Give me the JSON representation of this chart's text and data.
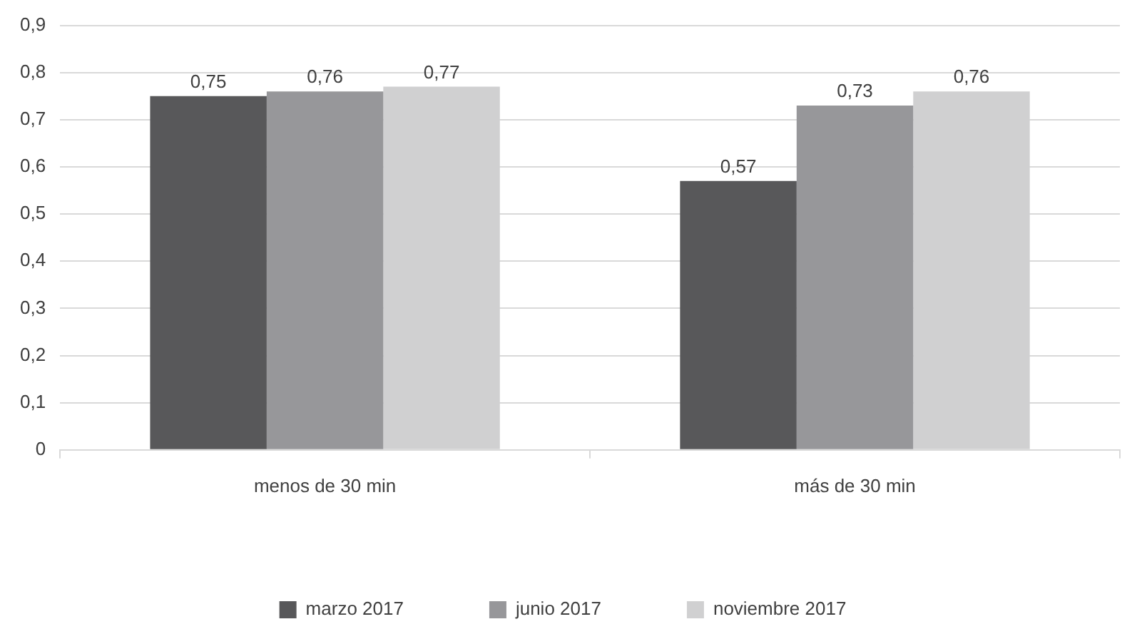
{
  "chart_data": {
    "type": "bar",
    "categories": [
      "menos de 30 min",
      "más de 30 min"
    ],
    "series": [
      {
        "name": "marzo 2017",
        "color": "#58585a",
        "values": [
          0.75,
          0.57
        ],
        "value_labels": [
          "0,75",
          "0,57"
        ]
      },
      {
        "name": "junio 2017",
        "color": "#97979a",
        "values": [
          0.76,
          0.73
        ],
        "value_labels": [
          "0,76",
          "0,73"
        ]
      },
      {
        "name": "noviembre 2017",
        "color": "#d0d0d1",
        "values": [
          0.77,
          0.76
        ],
        "value_labels": [
          "0,77",
          "0,76"
        ]
      }
    ],
    "ylim": [
      0,
      0.9
    ],
    "yticks": [
      {
        "value": 0,
        "label": "0"
      },
      {
        "value": 0.1,
        "label": "0,1"
      },
      {
        "value": 0.2,
        "label": "0,2"
      },
      {
        "value": 0.3,
        "label": "0,3"
      },
      {
        "value": 0.4,
        "label": "0,4"
      },
      {
        "value": 0.5,
        "label": "0,5"
      },
      {
        "value": 0.6,
        "label": "0,6"
      },
      {
        "value": 0.7,
        "label": "0,7"
      },
      {
        "value": 0.8,
        "label": "0,8"
      },
      {
        "value": 0.9,
        "label": "0,9"
      }
    ],
    "grid": "y",
    "legend": "bottom"
  }
}
